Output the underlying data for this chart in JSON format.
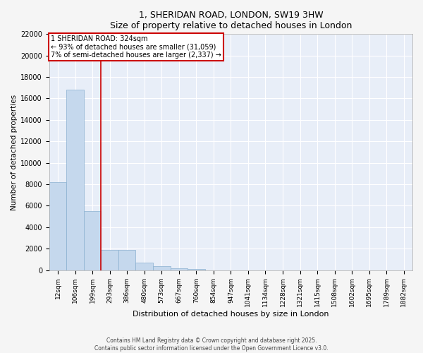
{
  "title_line1": "1, SHERIDAN ROAD, LONDON, SW19 3HW",
  "title_line2": "Size of property relative to detached houses in London",
  "xlabel": "Distribution of detached houses by size in London",
  "ylabel": "Number of detached properties",
  "bar_color": "#c5d8ed",
  "bar_edge_color": "#8ab0d0",
  "background_color": "#e8eef8",
  "grid_color": "#ffffff",
  "categories": [
    "12sqm",
    "106sqm",
    "199sqm",
    "293sqm",
    "386sqm",
    "480sqm",
    "573sqm",
    "667sqm",
    "760sqm",
    "854sqm",
    "947sqm",
    "1041sqm",
    "1134sqm",
    "1228sqm",
    "1321sqm",
    "1415sqm",
    "1508sqm",
    "1602sqm",
    "1695sqm",
    "1789sqm",
    "1882sqm"
  ],
  "values": [
    8200,
    16800,
    5500,
    1850,
    1850,
    700,
    400,
    200,
    100,
    0,
    0,
    0,
    0,
    0,
    0,
    0,
    0,
    0,
    0,
    0,
    0
  ],
  "ylim": [
    0,
    22000
  ],
  "yticks": [
    0,
    2000,
    4000,
    6000,
    8000,
    10000,
    12000,
    14000,
    16000,
    18000,
    20000,
    22000
  ],
  "property_bin_index": 3,
  "annotation_line1": "1 SHERIDAN ROAD: 324sqm",
  "annotation_line2": "← 93% of detached houses are smaller (31,059)",
  "annotation_line3": "7% of semi-detached houses are larger (2,337) →",
  "red_line_color": "#cc0000",
  "annotation_box_color": "#cc0000",
  "footer_line1": "Contains HM Land Registry data © Crown copyright and database right 2025.",
  "footer_line2": "Contains public sector information licensed under the Open Government Licence v3.0.",
  "fig_bg": "#f5f5f5"
}
